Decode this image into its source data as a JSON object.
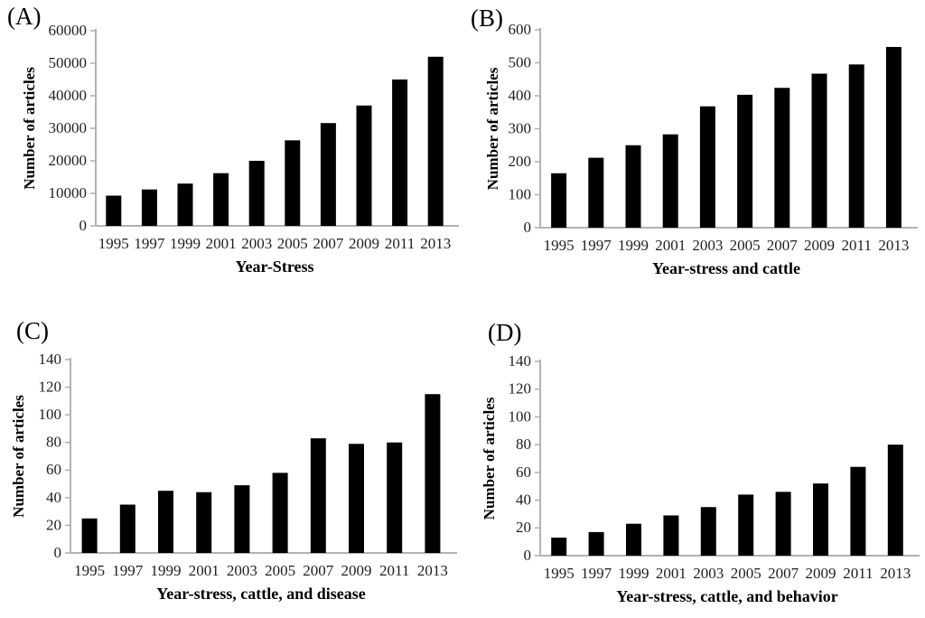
{
  "figure": {
    "background": "#ffffff",
    "description": "Four-panel bar chart figure of article counts by year"
  },
  "colors": {
    "bar": "#000000",
    "axis_line": "#b2b2b2",
    "tick_mark": "#b2b2b2",
    "tick_text": "#1f1f1f",
    "label_text": "#000000"
  },
  "chart_data": [
    {
      "type": "bar",
      "panel_label": "(A)",
      "title": "",
      "xlabel": "Year-Stress",
      "ylabel": "Number of articles",
      "categories": [
        "1995",
        "1997",
        "1999",
        "2001",
        "2003",
        "2005",
        "2007",
        "2009",
        "2011",
        "2013"
      ],
      "values": [
        9300,
        11200,
        13000,
        16200,
        20000,
        26300,
        31600,
        37000,
        45000,
        52000
      ],
      "ylim": [
        0,
        60000
      ],
      "ytick_step": 10000,
      "grid": false,
      "legend": false
    },
    {
      "type": "bar",
      "panel_label": "(B)",
      "title": "",
      "xlabel": "Year-stress and cattle",
      "ylabel": "Number of articles",
      "categories": [
        "1995",
        "1997",
        "1999",
        "2001",
        "2003",
        "2005",
        "2007",
        "2009",
        "2011",
        "2013"
      ],
      "values": [
        165,
        212,
        250,
        283,
        368,
        403,
        424,
        467,
        495,
        548
      ],
      "ylim": [
        0,
        600
      ],
      "ytick_step": 100,
      "grid": false,
      "legend": false
    },
    {
      "type": "bar",
      "panel_label": "(C)",
      "title": "",
      "xlabel": "Year-stress, cattle, and disease",
      "ylabel": "Number of articles",
      "categories": [
        "1995",
        "1997",
        "1999",
        "2001",
        "2003",
        "2005",
        "2007",
        "2009",
        "2011",
        "2013"
      ],
      "values": [
        25,
        35,
        45,
        44,
        49,
        58,
        83,
        79,
        80,
        115
      ],
      "ylim": [
        0,
        140
      ],
      "ytick_step": 20,
      "grid": false,
      "legend": false
    },
    {
      "type": "bar",
      "panel_label": "(D)",
      "title": "",
      "xlabel": "Year-stress, cattle, and behavior",
      "ylabel": "Number of articles",
      "categories": [
        "1995",
        "1997",
        "1999",
        "2001",
        "2003",
        "2005",
        "2007",
        "2009",
        "2011",
        "2013"
      ],
      "values": [
        13,
        17,
        23,
        29,
        35,
        44,
        46,
        52,
        64,
        80
      ],
      "ylim": [
        0,
        140
      ],
      "ytick_step": 20,
      "grid": false,
      "legend": false
    }
  ]
}
